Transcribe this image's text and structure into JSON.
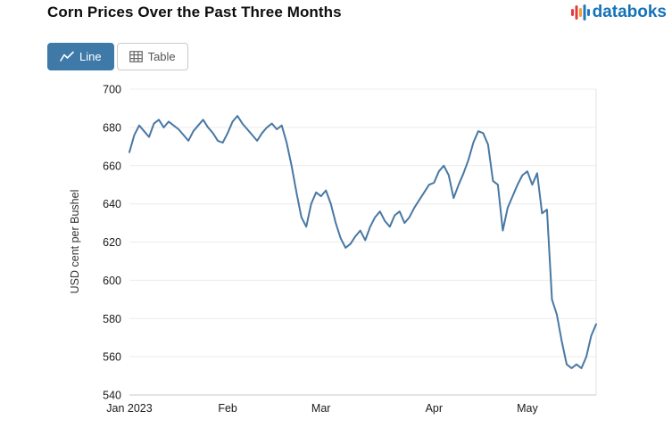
{
  "page": {
    "title": "Corn Prices Over the Past Three Months",
    "brand": {
      "name": "databoks",
      "color": "#1572b8",
      "icon_colors": [
        "#e23b3f",
        "#e23b3f",
        "#f59e2c",
        "#2178bd",
        "#2178bd"
      ]
    }
  },
  "toolbar": {
    "line_button": "Line",
    "table_button": "Table",
    "active_button": "Line",
    "active_button_bg": "#3e79a8"
  },
  "chart_data": {
    "type": "line",
    "title": "Corn Prices Over the Past Three Months",
    "xlabel": "",
    "ylabel": "USD cent per Bushel",
    "ylim": [
      540,
      700
    ],
    "yticks": [
      540,
      560,
      580,
      600,
      620,
      640,
      660,
      680,
      700
    ],
    "x_tick_labels": [
      "Jan 2023",
      "Feb",
      "Mar",
      "Apr",
      "May"
    ],
    "x_tick_indices": [
      0,
      20,
      39,
      62,
      81
    ],
    "grid": "horizontal-light",
    "legend": "none",
    "line_color": "#4878a4",
    "values": [
      667,
      676,
      681,
      678,
      675,
      682,
      684,
      680,
      683,
      681,
      679,
      676,
      673,
      678,
      681,
      684,
      680,
      677,
      673,
      672,
      677,
      683,
      686,
      682,
      679,
      676,
      673,
      677,
      680,
      682,
      679,
      681,
      672,
      660,
      646,
      633,
      628,
      640,
      646,
      644,
      647,
      640,
      630,
      622,
      617,
      619,
      623,
      626,
      621,
      628,
      633,
      636,
      631,
      628,
      634,
      636,
      630,
      633,
      638,
      642,
      646,
      650,
      651,
      657,
      660,
      655,
      643,
      650,
      656,
      663,
      672,
      678,
      677,
      671,
      652,
      650,
      626,
      638,
      644,
      650,
      655,
      657,
      650,
      656,
      635,
      637,
      590,
      582,
      568,
      556,
      554,
      556,
      554,
      560,
      571,
      577
    ]
  }
}
